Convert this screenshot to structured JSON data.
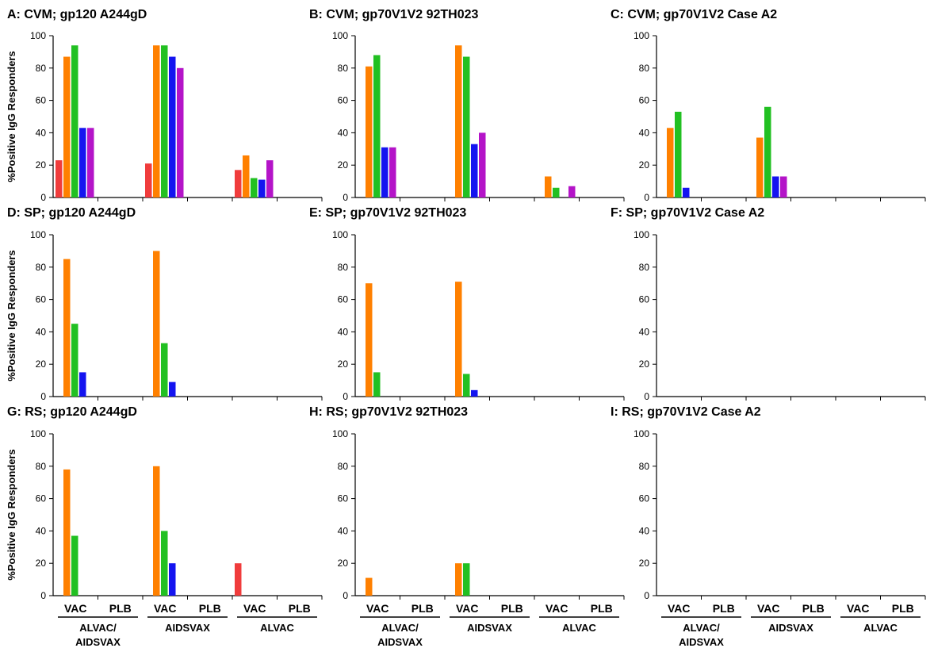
{
  "ylabel": "%Positive IgG Responders",
  "ylim": [
    0,
    100
  ],
  "yticks": [
    0,
    20,
    40,
    60,
    80,
    100
  ],
  "series_colors": [
    "#f03c3c",
    "#ff8000",
    "#22c022",
    "#1414f0",
    "#b414c8"
  ],
  "categories": [
    "VAC",
    "PLB",
    "VAC",
    "PLB",
    "VAC",
    "PLB"
  ],
  "groups": [
    {
      "lines": [
        "ALVAC/",
        "AIDSVAX"
      ]
    },
    {
      "lines": [
        "AIDSVAX"
      ]
    },
    {
      "lines": [
        "ALVAC"
      ]
    }
  ],
  "chart_data": [
    {
      "type": "bar",
      "title": "A: CVM; gp120 A244gD",
      "values": [
        [
          23,
          87,
          94,
          43,
          43
        ],
        [],
        [
          21,
          94,
          94,
          87,
          80
        ],
        [],
        [
          17,
          26,
          12,
          11,
          23
        ],
        []
      ]
    },
    {
      "type": "bar",
      "title": "B: CVM; gp70V1V2 92TH023",
      "values": [
        [
          0,
          81,
          88,
          31,
          31
        ],
        [],
        [
          0,
          94,
          87,
          33,
          40
        ],
        [],
        [
          0,
          13,
          6,
          0,
          7
        ],
        []
      ]
    },
    {
      "type": "bar",
      "title": "C: CVM; gp70V1V2 Case A2",
      "values": [
        [
          0,
          43,
          53,
          6,
          0
        ],
        [],
        [
          0,
          37,
          56,
          13,
          13
        ],
        [],
        [],
        []
      ]
    },
    {
      "type": "bar",
      "title": "D: SP; gp120 A244gD",
      "values": [
        [
          0,
          85,
          45,
          15,
          0
        ],
        [],
        [
          0,
          90,
          33,
          9,
          0
        ],
        [],
        [],
        []
      ]
    },
    {
      "type": "bar",
      "title": "E: SP; gp70V1V2 92TH023",
      "values": [
        [
          0,
          70,
          15,
          0,
          0
        ],
        [],
        [
          0,
          71,
          14,
          4,
          0
        ],
        [],
        [],
        []
      ]
    },
    {
      "type": "bar",
      "title": "F: SP; gp70V1V2 Case A2",
      "values": [
        [],
        [],
        [],
        [],
        [],
        []
      ]
    },
    {
      "type": "bar",
      "title": "G: RS; gp120 A244gD",
      "values": [
        [
          0,
          78,
          37,
          0,
          0
        ],
        [],
        [
          0,
          80,
          40,
          20,
          0
        ],
        [],
        [
          20,
          0,
          0,
          0,
          0
        ],
        []
      ]
    },
    {
      "type": "bar",
      "title": "H: RS; gp70V1V2 92TH023",
      "values": [
        [
          0,
          11,
          0,
          0,
          0
        ],
        [],
        [
          0,
          20,
          20,
          0,
          0
        ],
        [],
        [],
        []
      ]
    },
    {
      "type": "bar",
      "title": "I: RS; gp70V1V2 Case A2",
      "values": [
        [],
        [],
        [],
        [],
        [],
        []
      ]
    }
  ]
}
